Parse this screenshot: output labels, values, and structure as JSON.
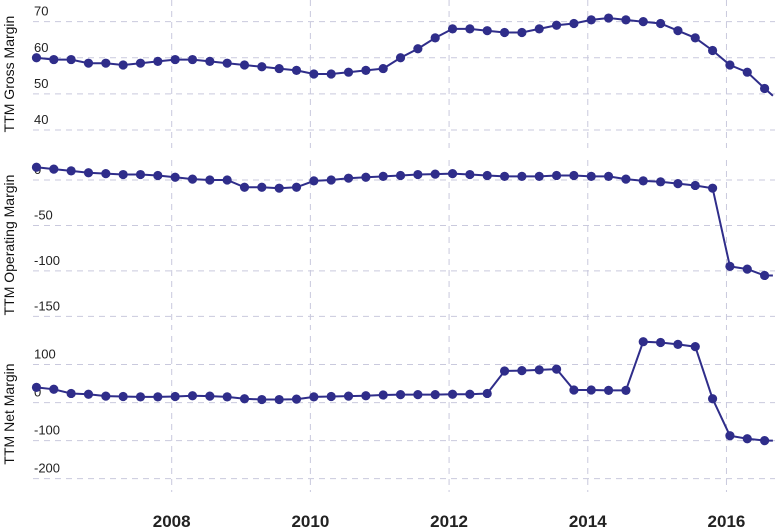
{
  "chart_data": [
    {
      "type": "line",
      "ylabel": "TTM Gross Margin",
      "ylim": [
        35,
        76
      ],
      "yticks": [
        40,
        50,
        60,
        70
      ],
      "xlim": [
        2006.0,
        2016.7
      ],
      "xticks": [
        2008,
        2010,
        2012,
        2014,
        2016
      ],
      "grid": true,
      "color": "#2f2d8a",
      "x": [
        2006.05,
        2006.3,
        2006.55,
        2006.8,
        2007.05,
        2007.3,
        2007.55,
        2007.8,
        2008.05,
        2008.3,
        2008.55,
        2008.8,
        2009.05,
        2009.3,
        2009.55,
        2009.8,
        2010.05,
        2010.3,
        2010.55,
        2010.8,
        2011.05,
        2011.3,
        2011.55,
        2011.8,
        2012.05,
        2012.3,
        2012.55,
        2012.8,
        2013.05,
        2013.3,
        2013.55,
        2013.8,
        2014.05,
        2014.3,
        2014.55,
        2014.8,
        2015.05,
        2015.3,
        2015.55,
        2015.8,
        2016.05,
        2016.3,
        2016.55
      ],
      "values": [
        60,
        59.5,
        59.5,
        58.5,
        58.5,
        58,
        58.5,
        59,
        59.5,
        59.5,
        59,
        58.5,
        58,
        57.5,
        57,
        56.5,
        55.5,
        55.5,
        56,
        56.5,
        57,
        60,
        62.5,
        65.5,
        68,
        68,
        67.5,
        67,
        67,
        68,
        69,
        69.5,
        70.5,
        71,
        70.5,
        70,
        69.5,
        67.5,
        65.5,
        62,
        58,
        56,
        51.5
      ]
    },
    {
      "type": "line",
      "ylabel": "TTM Operating Margin",
      "ylim": [
        -165,
        22
      ],
      "yticks": [
        0,
        -50,
        -100,
        -150
      ],
      "xlim": [
        2006.0,
        2016.7
      ],
      "xticks": [
        2008,
        2010,
        2012,
        2014,
        2016
      ],
      "grid": true,
      "color": "#2f2d8a",
      "x": [
        2006.05,
        2006.3,
        2006.55,
        2006.8,
        2007.05,
        2007.3,
        2007.55,
        2007.8,
        2008.05,
        2008.3,
        2008.55,
        2008.8,
        2009.05,
        2009.3,
        2009.55,
        2009.8,
        2010.05,
        2010.3,
        2010.55,
        2010.8,
        2011.05,
        2011.3,
        2011.55,
        2011.8,
        2012.05,
        2012.3,
        2012.55,
        2012.8,
        2013.05,
        2013.3,
        2013.55,
        2013.8,
        2014.05,
        2014.3,
        2014.55,
        2014.8,
        2015.05,
        2015.3,
        2015.55,
        2015.8,
        2016.05,
        2016.3,
        2016.55
      ],
      "values": [
        14,
        12,
        10,
        8,
        7,
        6,
        6,
        5,
        3,
        1,
        0,
        0,
        -8,
        -8,
        -9,
        -8,
        -1,
        0,
        2,
        3,
        4,
        5,
        6,
        6.5,
        7,
        6,
        5,
        4,
        4,
        4,
        5,
        5,
        4,
        4,
        1,
        -1,
        -2,
        -4,
        -6,
        -9,
        -95,
        -98,
        -105
      ]
    },
    {
      "type": "line",
      "ylabel": "TTM Net Margin",
      "ylim": [
        -235,
        175
      ],
      "yticks": [
        100,
        0,
        -100,
        -200
      ],
      "xlim": [
        2006.0,
        2016.7
      ],
      "xticks": [
        2008,
        2010,
        2012,
        2014,
        2016
      ],
      "grid": true,
      "color": "#2f2d8a",
      "x": [
        2006.05,
        2006.3,
        2006.55,
        2006.8,
        2007.05,
        2007.3,
        2007.55,
        2007.8,
        2008.05,
        2008.3,
        2008.55,
        2008.8,
        2009.05,
        2009.3,
        2009.55,
        2009.8,
        2010.05,
        2010.3,
        2010.55,
        2010.8,
        2011.05,
        2011.3,
        2011.55,
        2011.8,
        2012.05,
        2012.3,
        2012.55,
        2012.8,
        2013.05,
        2013.3,
        2013.55,
        2013.8,
        2014.05,
        2014.3,
        2014.55,
        2014.8,
        2015.05,
        2015.3,
        2015.55,
        2015.8,
        2016.05,
        2016.3,
        2016.55
      ],
      "values": [
        40,
        35,
        24,
        22,
        17,
        16,
        15,
        15,
        16,
        18,
        17,
        15,
        10,
        8,
        8,
        9,
        15,
        16,
        17,
        18,
        20,
        21,
        21,
        21,
        22,
        22,
        24,
        83,
        84,
        86,
        88,
        33,
        33,
        32,
        32,
        160,
        158,
        153,
        147,
        10,
        -87,
        -95,
        -100
      ]
    }
  ]
}
